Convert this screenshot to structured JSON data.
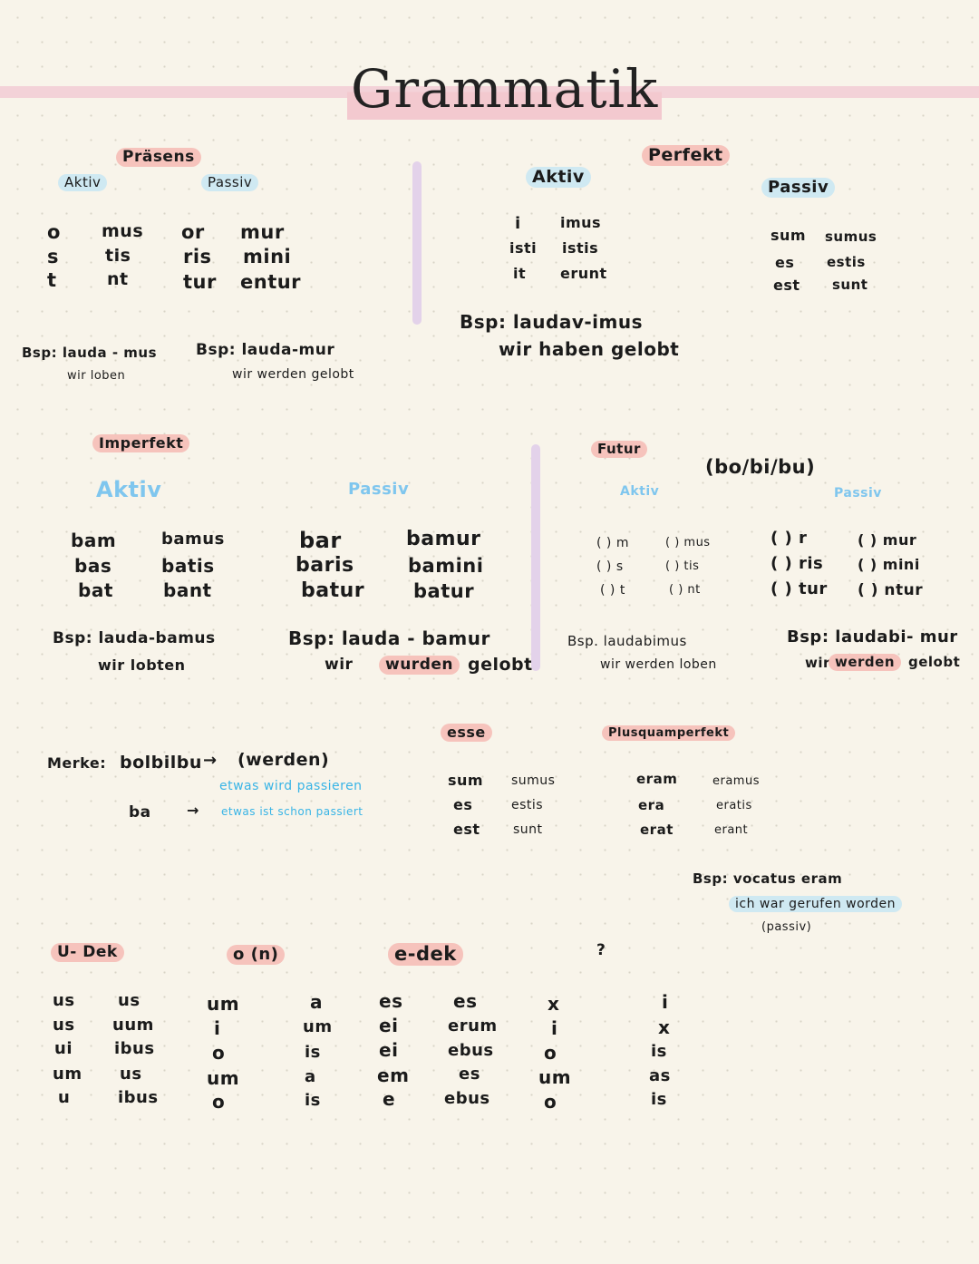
{
  "title": "Grammatik",
  "praesens": {
    "heading": "Präsens",
    "aktiv_label": "Aktiv",
    "passiv_label": "Passiv",
    "aktiv_sg": [
      "o",
      "s",
      "t"
    ],
    "aktiv_pl": [
      "mus",
      "tis",
      "nt"
    ],
    "passiv_sg": [
      "or",
      "ris",
      "tur"
    ],
    "passiv_pl": [
      "mur",
      "mini",
      "entur"
    ],
    "bsp_aktiv": "Bsp: lauda - mus",
    "bsp_aktiv_tr": "wir loben",
    "bsp_passiv": "Bsp: lauda-mur",
    "bsp_passiv_tr": "wir werden gelobt"
  },
  "perfekt": {
    "heading": "Perfekt",
    "aktiv_label": "Aktiv",
    "passiv_label": "Passiv",
    "aktiv_sg": [
      "i",
      "isti",
      "it"
    ],
    "aktiv_pl": [
      "imus",
      "istis",
      "erunt"
    ],
    "passiv_sg": [
      "sum",
      "es",
      "est"
    ],
    "passiv_pl": [
      "sumus",
      "estis",
      "sunt"
    ],
    "bsp": "Bsp: laudav-imus",
    "bsp_tr": "wir haben gelobt"
  },
  "imperfekt": {
    "heading": "Imperfekt",
    "aktiv_label": "Aktiv",
    "passiv_label": "Passiv",
    "aktiv_sg": [
      "bam",
      "bas",
      "bat"
    ],
    "aktiv_pl": [
      "bamus",
      "batis",
      "bant"
    ],
    "passiv_sg": [
      "bar",
      "baris",
      "batur"
    ],
    "passiv_pl": [
      "bamur",
      "bamini",
      "batur"
    ],
    "bsp_aktiv": "Bsp: lauda-bamus",
    "bsp_aktiv_tr": "wir lobten",
    "bsp_passiv": "Bsp: lauda - bamur",
    "bsp_passiv_tr_1": "wir",
    "bsp_passiv_tr_2": "wurden",
    "bsp_passiv_tr_3": "gelobt"
  },
  "futur": {
    "heading": "Futur",
    "note": "(bo/bi/bu)",
    "aktiv_label": "Aktiv",
    "passiv_label": "Passiv",
    "aktiv_sg": [
      "( ) m",
      "( ) s",
      "( ) t"
    ],
    "aktiv_pl": [
      "( ) mus",
      "( ) tis",
      "( ) nt"
    ],
    "passiv_sg": [
      "( ) r",
      "( ) ris",
      "( ) tur"
    ],
    "passiv_pl": [
      "( ) mur",
      "( ) mini",
      "( ) ntur"
    ],
    "bsp_aktiv": "Bsp. laudabimus",
    "bsp_aktiv_tr": "wir werden loben",
    "bsp_passiv": "Bsp: laudabi- mur",
    "bsp_passiv_tr_1": "wir",
    "bsp_passiv_tr_2": "werden",
    "bsp_passiv_tr_3": "gelobt"
  },
  "merke": {
    "label": "Merke:",
    "line1_left": "bolbilbu",
    "line1_right": "(werden)",
    "line1_note": "etwas wird passieren",
    "line2_left": "ba",
    "line2_note": "etwas ist schon passiert",
    "arrow": "→"
  },
  "esse": {
    "heading": "esse",
    "sg": [
      "sum",
      "es",
      "est"
    ],
    "pl": [
      "sumus",
      "estis",
      "sunt"
    ]
  },
  "plusquamperfekt": {
    "heading": "Plusquamperfekt",
    "sg": [
      "eram",
      "era",
      "erat"
    ],
    "pl": [
      "eramus",
      "eratis",
      "erant"
    ],
    "bsp": "Bsp: vocatus eram",
    "bsp_tr_1": "ich war gerufen worden",
    "bsp_tr_2": "(passiv)"
  },
  "deklinationen": {
    "u_heading": "U- Dek",
    "o_heading": "o (n)",
    "e_heading": "e-dek",
    "q_heading": "?",
    "u_sg": [
      "us",
      "us",
      "ui",
      "um",
      "u"
    ],
    "u_pl": [
      "us",
      "uum",
      "ibus",
      "us",
      "ibus"
    ],
    "o_sg": [
      "um",
      "i",
      "o",
      "um",
      "o"
    ],
    "o_pl": [
      "a",
      "um",
      "is",
      "a",
      "is"
    ],
    "e_sg": [
      "es",
      "ei",
      "ei",
      "em",
      "e"
    ],
    "e_pl": [
      "es",
      "erum",
      "ebus",
      "es",
      "ebus"
    ],
    "q_sg": [
      "x",
      "i",
      "o",
      "um",
      "o"
    ],
    "q_pl": [
      "i",
      "x",
      "is",
      "as",
      "is"
    ]
  }
}
